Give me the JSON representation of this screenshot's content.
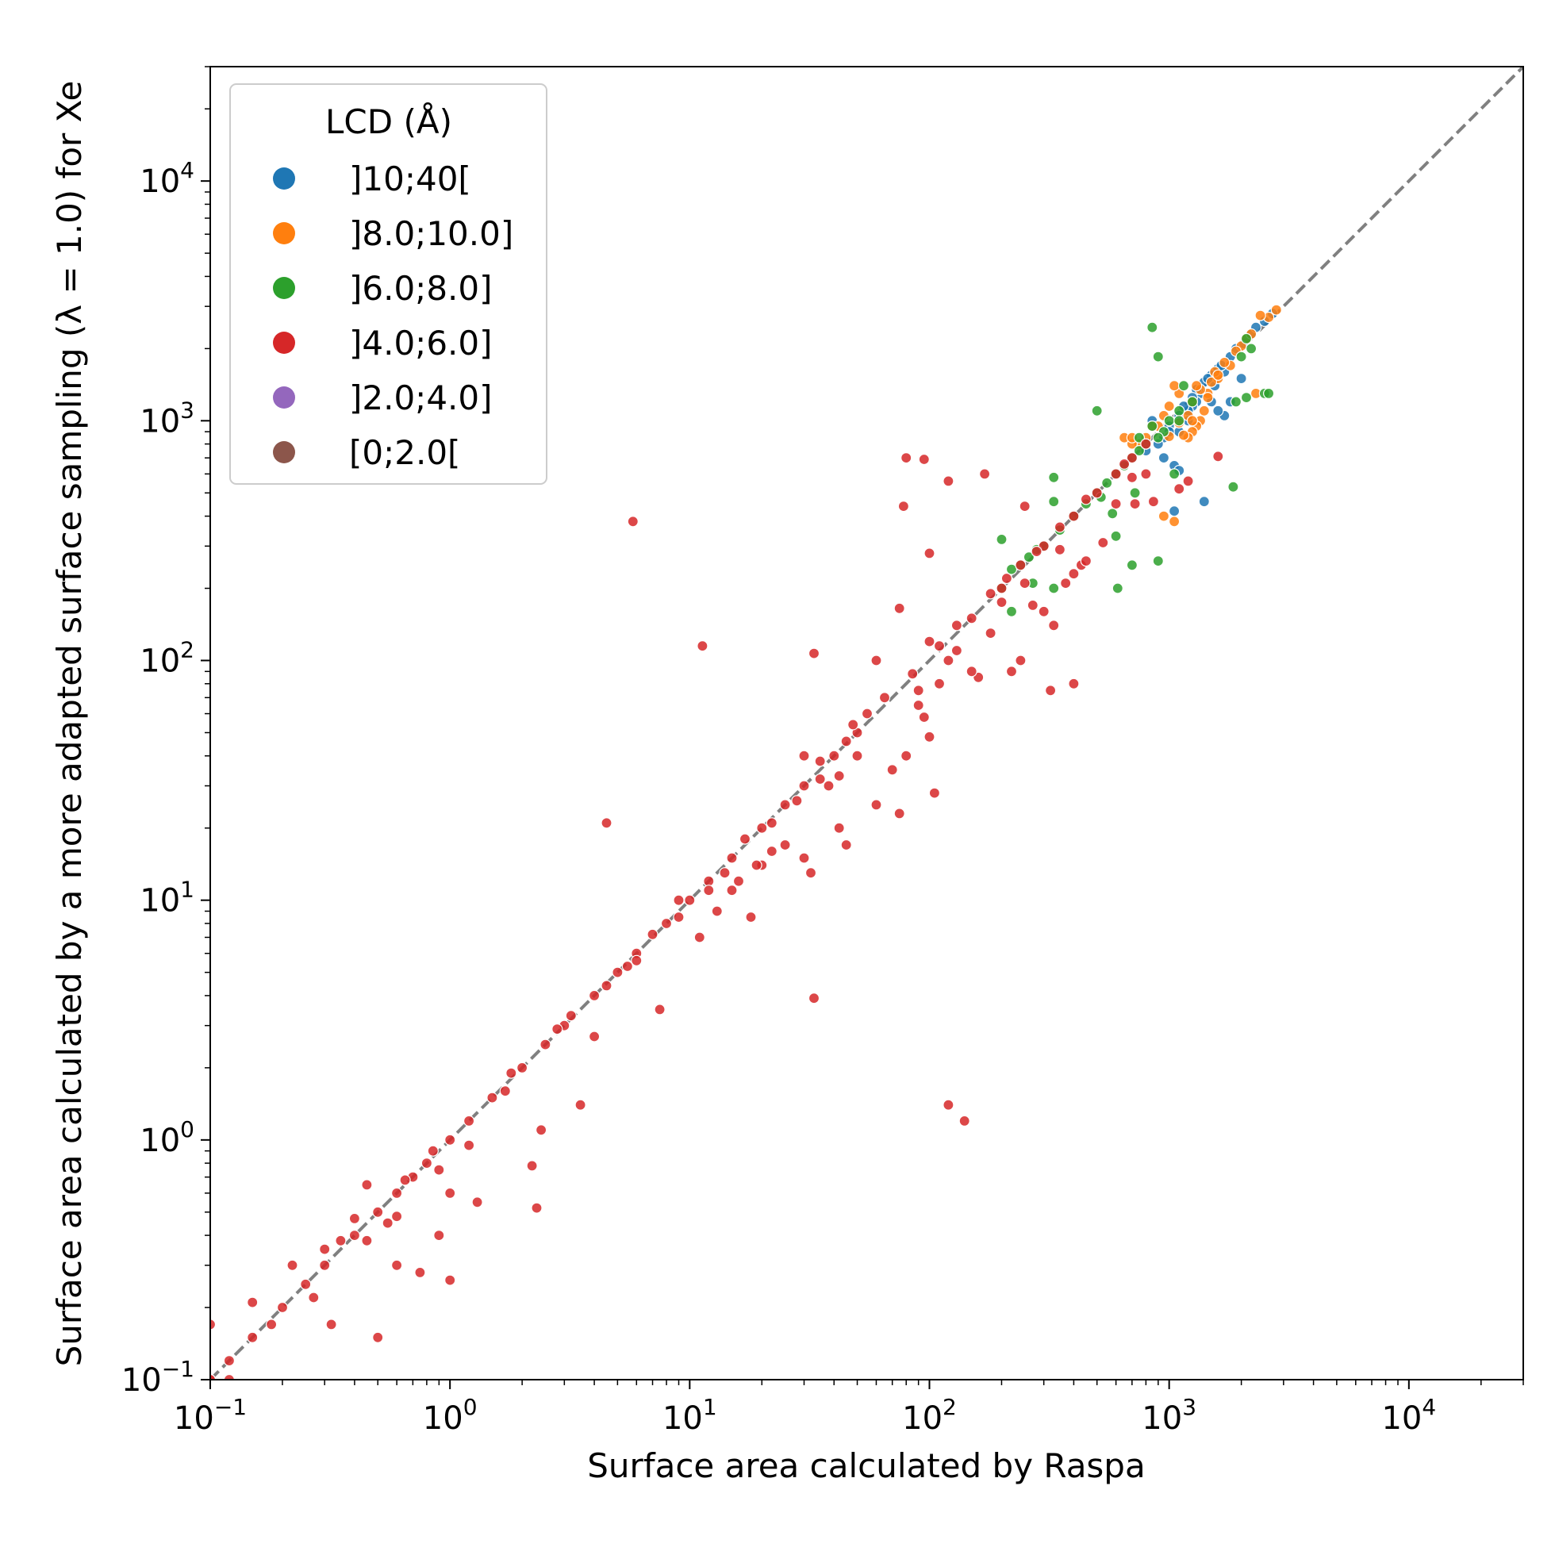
{
  "chart_data": {
    "type": "scatter",
    "xlabel": "Surface area calculated by Raspa",
    "ylabel": "Surface area calculated by a more adapted surface sampling (λ = 1.0) for Xe",
    "xscale": "log",
    "yscale": "log",
    "xlim": [
      0.1,
      30000
    ],
    "ylim": [
      0.1,
      30000
    ],
    "x_ticks": [
      {
        "base": "10",
        "exp": "−1"
      },
      {
        "base": "10",
        "exp": "0"
      },
      {
        "base": "10",
        "exp": "1"
      },
      {
        "base": "10",
        "exp": "2"
      },
      {
        "base": "10",
        "exp": "3"
      },
      {
        "base": "10",
        "exp": "4"
      }
    ],
    "y_ticks": [
      {
        "base": "10",
        "exp": "−1"
      },
      {
        "base": "10",
        "exp": "0"
      },
      {
        "base": "10",
        "exp": "1"
      },
      {
        "base": "10",
        "exp": "2"
      },
      {
        "base": "10",
        "exp": "3"
      },
      {
        "base": "10",
        "exp": "4"
      }
    ],
    "grid": false,
    "legend": {
      "title": "LCD (Å)",
      "placement": "top-left"
    },
    "reference_line": {
      "style": "dashed",
      "color": "#808080",
      "points": [
        [
          0.1,
          0.1
        ],
        [
          30000,
          30000
        ]
      ]
    },
    "series": [
      {
        "name": "]10;40[",
        "color": "#1f77b4",
        "points": [
          [
            2500,
            2600
          ],
          [
            2200,
            2300
          ],
          [
            1900,
            2000
          ],
          [
            1800,
            1850
          ],
          [
            1700,
            1600
          ],
          [
            1600,
            1650
          ],
          [
            1500,
            1550
          ],
          [
            1400,
            1450
          ],
          [
            1350,
            1300
          ],
          [
            1300,
            1200
          ],
          [
            1250,
            1150
          ],
          [
            1200,
            1100
          ],
          [
            1100,
            900
          ],
          [
            1000,
            950
          ],
          [
            950,
            850
          ],
          [
            900,
            800
          ],
          [
            850,
            1000
          ],
          [
            800,
            750
          ],
          [
            1050,
            650
          ],
          [
            1100,
            620
          ],
          [
            1700,
            1050
          ],
          [
            1800,
            1200
          ],
          [
            1550,
            1400
          ],
          [
            1300,
            1350
          ],
          [
            1500,
            1200
          ],
          [
            1200,
            1000
          ],
          [
            1050,
            420
          ],
          [
            1400,
            460
          ],
          [
            2000,
            1500
          ],
          [
            1600,
            1100
          ],
          [
            1100,
            1050
          ],
          [
            950,
            700
          ],
          [
            1000,
            900
          ],
          [
            1150,
            1150
          ],
          [
            1250,
            1250
          ],
          [
            1450,
            1500
          ],
          [
            1650,
            1700
          ],
          [
            2050,
            2100
          ],
          [
            2300,
            2450
          ],
          [
            2700,
            2800
          ]
        ]
      },
      {
        "name": "]8.0;10.0]",
        "color": "#ff7f0e",
        "points": [
          [
            2800,
            2900
          ],
          [
            2600,
            2700
          ],
          [
            2400,
            2750
          ],
          [
            2300,
            1300
          ],
          [
            2100,
            2200
          ],
          [
            2000,
            2050
          ],
          [
            1900,
            1950
          ],
          [
            1800,
            1700
          ],
          [
            1700,
            1750
          ],
          [
            1600,
            1500
          ],
          [
            1500,
            1450
          ],
          [
            1450,
            1300
          ],
          [
            1400,
            1100
          ],
          [
            1350,
            1000
          ],
          [
            1300,
            950
          ],
          [
            1250,
            900
          ],
          [
            1200,
            850
          ],
          [
            1150,
            870
          ],
          [
            1100,
            1300
          ],
          [
            1050,
            1400
          ],
          [
            1000,
            1150
          ],
          [
            950,
            1050
          ],
          [
            900,
            950
          ],
          [
            850,
            950
          ],
          [
            800,
            850
          ],
          [
            750,
            800
          ],
          [
            700,
            800
          ],
          [
            650,
            850
          ],
          [
            1050,
            380
          ],
          [
            950,
            400
          ],
          [
            700,
            850
          ],
          [
            1250,
            1200
          ],
          [
            1350,
            1350
          ],
          [
            1550,
            1600
          ],
          [
            1200,
            1050
          ],
          [
            1100,
            980
          ],
          [
            1000,
            860
          ],
          [
            1450,
            1250
          ],
          [
            1600,
            1550
          ],
          [
            1250,
            1000
          ],
          [
            1300,
            1400
          ],
          [
            2200,
            2300
          ]
        ]
      },
      {
        "name": "]6.0;8.0]",
        "color": "#2ca02c",
        "points": [
          [
            850,
            2450
          ],
          [
            900,
            1850
          ],
          [
            2100,
            2200
          ],
          [
            2200,
            2000
          ],
          [
            2000,
            1850
          ],
          [
            2500,
            1300
          ],
          [
            2600,
            1300
          ],
          [
            2100,
            1250
          ],
          [
            1900,
            1200
          ],
          [
            1850,
            530
          ],
          [
            1150,
            1400
          ],
          [
            1250,
            1200
          ],
          [
            1100,
            1100
          ],
          [
            1000,
            1000
          ],
          [
            950,
            900
          ],
          [
            900,
            850
          ],
          [
            850,
            950
          ],
          [
            800,
            800
          ],
          [
            750,
            750
          ],
          [
            700,
            700
          ],
          [
            650,
            650
          ],
          [
            600,
            600
          ],
          [
            550,
            550
          ],
          [
            500,
            500
          ],
          [
            450,
            450
          ],
          [
            400,
            400
          ],
          [
            350,
            350
          ],
          [
            300,
            300
          ],
          [
            280,
            290
          ],
          [
            260,
            270
          ],
          [
            240,
            250
          ],
          [
            220,
            240
          ],
          [
            200,
            200
          ],
          [
            500,
            1100
          ],
          [
            330,
            580
          ],
          [
            520,
            480
          ],
          [
            580,
            410
          ],
          [
            600,
            330
          ],
          [
            720,
            500
          ],
          [
            700,
            250
          ],
          [
            900,
            260
          ],
          [
            610,
            200
          ],
          [
            330,
            200
          ],
          [
            270,
            210
          ],
          [
            220,
            160
          ],
          [
            200,
            320
          ],
          [
            330,
            460
          ],
          [
            1050,
            600
          ],
          [
            1100,
            1000
          ],
          [
            750,
            850
          ]
        ]
      },
      {
        "name": "]4.0;6.0]",
        "color": "#d62728",
        "points": [
          [
            5.8,
            380
          ],
          [
            11.3,
            115
          ],
          [
            33,
            107
          ],
          [
            4.5,
            21
          ],
          [
            33,
            3.9
          ],
          [
            120,
            1.4
          ],
          [
            140,
            1.2
          ],
          [
            80,
            700
          ],
          [
            95,
            690
          ],
          [
            78,
            440
          ],
          [
            170,
            600
          ],
          [
            120,
            560
          ],
          [
            100,
            280
          ],
          [
            250,
            440
          ],
          [
            75,
            165
          ],
          [
            100,
            120
          ],
          [
            150,
            150
          ],
          [
            200,
            200
          ],
          [
            300,
            300
          ],
          [
            400,
            400
          ],
          [
            500,
            500
          ],
          [
            600,
            600
          ],
          [
            700,
            700
          ],
          [
            800,
            800
          ],
          [
            160,
            85
          ],
          [
            220,
            90
          ],
          [
            300,
            160
          ],
          [
            320,
            75
          ],
          [
            400,
            80
          ],
          [
            330,
            140
          ],
          [
            270,
            170
          ],
          [
            370,
            210
          ],
          [
            430,
            250
          ],
          [
            530,
            310
          ],
          [
            720,
            450
          ],
          [
            860,
            460
          ],
          [
            1100,
            520
          ],
          [
            1200,
            560
          ],
          [
            1600,
            710
          ],
          [
            60,
            100
          ],
          [
            50,
            50
          ],
          [
            40,
            40
          ],
          [
            30,
            30
          ],
          [
            25,
            25
          ],
          [
            20,
            20
          ],
          [
            15,
            15
          ],
          [
            12,
            12
          ],
          [
            10,
            10
          ],
          [
            8,
            8
          ],
          [
            6,
            6
          ],
          [
            5,
            5
          ],
          [
            4,
            4
          ],
          [
            3,
            3
          ],
          [
            2.5,
            2.5
          ],
          [
            2,
            2
          ],
          [
            1.5,
            1.5
          ],
          [
            1.2,
            1.2
          ],
          [
            1,
            1
          ],
          [
            0.8,
            0.8
          ],
          [
            0.6,
            0.6
          ],
          [
            0.5,
            0.5
          ],
          [
            0.4,
            0.4
          ],
          [
            0.3,
            0.3
          ],
          [
            0.25,
            0.25
          ],
          [
            0.2,
            0.2
          ],
          [
            0.15,
            0.15
          ],
          [
            0.12,
            0.12
          ],
          [
            0.1,
            0.1
          ],
          [
            90,
            65
          ],
          [
            80,
            40
          ],
          [
            70,
            35
          ],
          [
            50,
            40
          ],
          [
            95,
            58
          ],
          [
            100,
            48
          ],
          [
            105,
            28
          ],
          [
            60,
            25
          ],
          [
            75,
            23
          ],
          [
            42,
            20
          ],
          [
            45,
            17
          ],
          [
            30,
            15
          ],
          [
            32,
            13
          ],
          [
            20,
            14
          ],
          [
            15,
            11
          ],
          [
            18,
            8.5
          ],
          [
            11,
            7
          ],
          [
            7.5,
            3.5
          ],
          [
            3.5,
            1.4
          ],
          [
            4,
            2.7
          ],
          [
            2.2,
            0.78
          ],
          [
            2.3,
            0.52
          ],
          [
            1.3,
            0.55
          ],
          [
            1,
            0.6
          ],
          [
            0.9,
            0.4
          ],
          [
            0.6,
            0.3
          ],
          [
            0.75,
            0.28
          ],
          [
            1,
            0.26
          ],
          [
            0.5,
            0.15
          ],
          [
            0.32,
            0.17
          ],
          [
            0.15,
            0.21
          ],
          [
            0.1,
            0.17
          ],
          [
            0.12,
            0.1
          ],
          [
            0.45,
            0.65
          ],
          [
            0.4,
            0.47
          ],
          [
            0.55,
            0.45
          ],
          [
            0.7,
            0.7
          ],
          [
            2.4,
            1.1
          ],
          [
            0.3,
            0.35
          ],
          [
            0.27,
            0.22
          ],
          [
            0.22,
            0.3
          ],
          [
            0.1,
            0.1
          ],
          [
            30,
            40
          ],
          [
            35,
            32
          ],
          [
            55,
            60
          ],
          [
            48,
            54
          ],
          [
            12,
            11
          ],
          [
            9,
            10
          ],
          [
            7,
            7.2
          ],
          [
            6,
            5.6
          ],
          [
            5.5,
            5.3
          ],
          [
            14,
            13
          ],
          [
            17,
            18
          ],
          [
            22,
            21
          ],
          [
            28,
            26
          ],
          [
            35,
            38
          ],
          [
            45,
            46
          ],
          [
            65,
            70
          ],
          [
            85,
            88
          ],
          [
            110,
            115
          ],
          [
            130,
            140
          ],
          [
            180,
            190
          ],
          [
            210,
            220
          ],
          [
            240,
            250
          ],
          [
            280,
            285
          ],
          [
            350,
            360
          ],
          [
            450,
            470
          ],
          [
            650,
            660
          ],
          [
            1.8,
            1.9
          ],
          [
            1.7,
            1.6
          ],
          [
            2.8,
            2.9
          ],
          [
            3.2,
            3.3
          ],
          [
            4.5,
            4.4
          ],
          [
            0.85,
            0.9
          ],
          [
            0.65,
            0.68
          ],
          [
            0.35,
            0.38
          ],
          [
            0.18,
            0.17
          ],
          [
            150,
            90
          ],
          [
            130,
            110
          ],
          [
            180,
            130
          ],
          [
            240,
            100
          ],
          [
            200,
            175
          ],
          [
            120,
            100
          ],
          [
            110,
            80
          ],
          [
            90,
            75
          ],
          [
            400,
            230
          ],
          [
            450,
            260
          ],
          [
            250,
            210
          ],
          [
            350,
            290
          ],
          [
            600,
            450
          ],
          [
            700,
            580
          ],
          [
            800,
            600
          ],
          [
            25,
            17
          ],
          [
            22,
            16
          ],
          [
            38,
            30
          ],
          [
            42,
            33
          ],
          [
            19,
            14
          ],
          [
            16,
            12
          ],
          [
            13,
            9
          ],
          [
            9,
            8.5
          ],
          [
            1.2,
            0.95
          ],
          [
            0.9,
            0.75
          ],
          [
            0.6,
            0.48
          ],
          [
            0.45,
            0.38
          ]
        ]
      },
      {
        "name": "]2.0;4.0]",
        "color": "#9467bd",
        "points": []
      },
      {
        "name": "[0;2.0[",
        "color": "#8c564b",
        "points": []
      }
    ]
  }
}
